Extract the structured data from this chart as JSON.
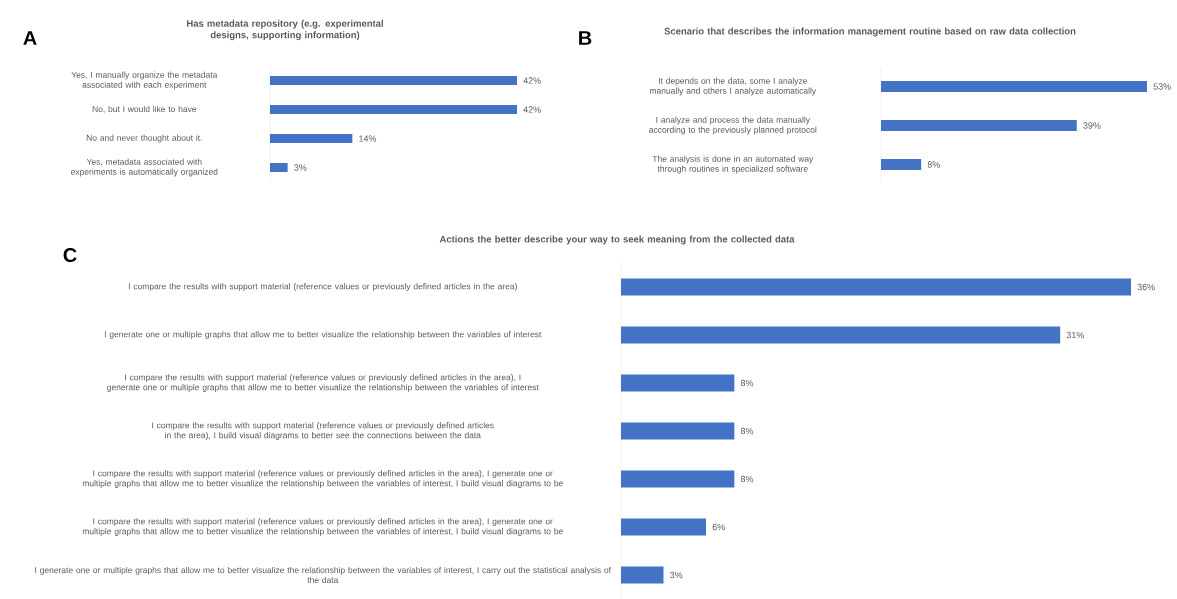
{
  "chart_data": [
    {
      "type": "bar",
      "orientation": "horizontal",
      "title": "Has metadata repository (e.g. experimental designs, supporting information)",
      "annotations": [
        "A"
      ],
      "categories": [
        "Yes, I manually organize the metadata associated with each experiment",
        "No, but I would like to have",
        "No and never thought about it.",
        "Yes, metadata associated with experiments is automatically organized"
      ],
      "values": [
        42,
        42,
        14,
        3
      ],
      "value_labels": [
        "42%",
        "42%",
        "14%",
        "3%"
      ],
      "color": "#4472c4"
    },
    {
      "type": "bar",
      "orientation": "horizontal",
      "title": "Scenario that describes the information management routine based on raw data collection",
      "annotations": [
        "B"
      ],
      "categories": [
        "It depends on the data, some I analyze manually and others I analyze automatically",
        "I analyze and process the data manually according to the previously planned protocol",
        "The analysis is done in an automated way through routines in specialized software"
      ],
      "values": [
        53,
        39,
        8
      ],
      "value_labels": [
        "53%",
        "39%",
        "8%"
      ],
      "color": "#4472c4"
    },
    {
      "type": "bar",
      "orientation": "horizontal",
      "title": "Actions the better describe your way to seek meaning from the collected data",
      "annotations": [
        "C"
      ],
      "categories": [
        "I compare the results with support material (reference values or previously defined articles in the area)",
        "I generate one or multiple graphs that allow me to better visualize the relationship between the variables of interest",
        "I compare the results with support material (reference values or previously defined articles in the area), I generate one or multiple graphs that allow me to better visualize the relationship between the variables of interest",
        "I compare the results with support material (reference values or previously defined articles in the area), I build visual diagrams to better see the connections between the data",
        "I compare the results with support material (reference values or previously defined articles in the area), I generate one or multiple graphs that allow me to better visualize the relationship between the variables of interest, I build visual diagrams to be",
        "I compare the results with support material (reference values or previously defined articles in the area), I generate one or multiple graphs that allow me to better visualize the relationship between the variables of interest, I build visual diagrams to be",
        "I generate one or multiple graphs that allow me to better visualize the relationship between the variables of interest, I carry out the statistical analysis of the data"
      ],
      "values": [
        36,
        31,
        8,
        8,
        8,
        6,
        3
      ],
      "value_labels": [
        "36%",
        "31%",
        "8%",
        "8%",
        "8%",
        "6%",
        "3%"
      ],
      "color": "#4472c4"
    }
  ]
}
